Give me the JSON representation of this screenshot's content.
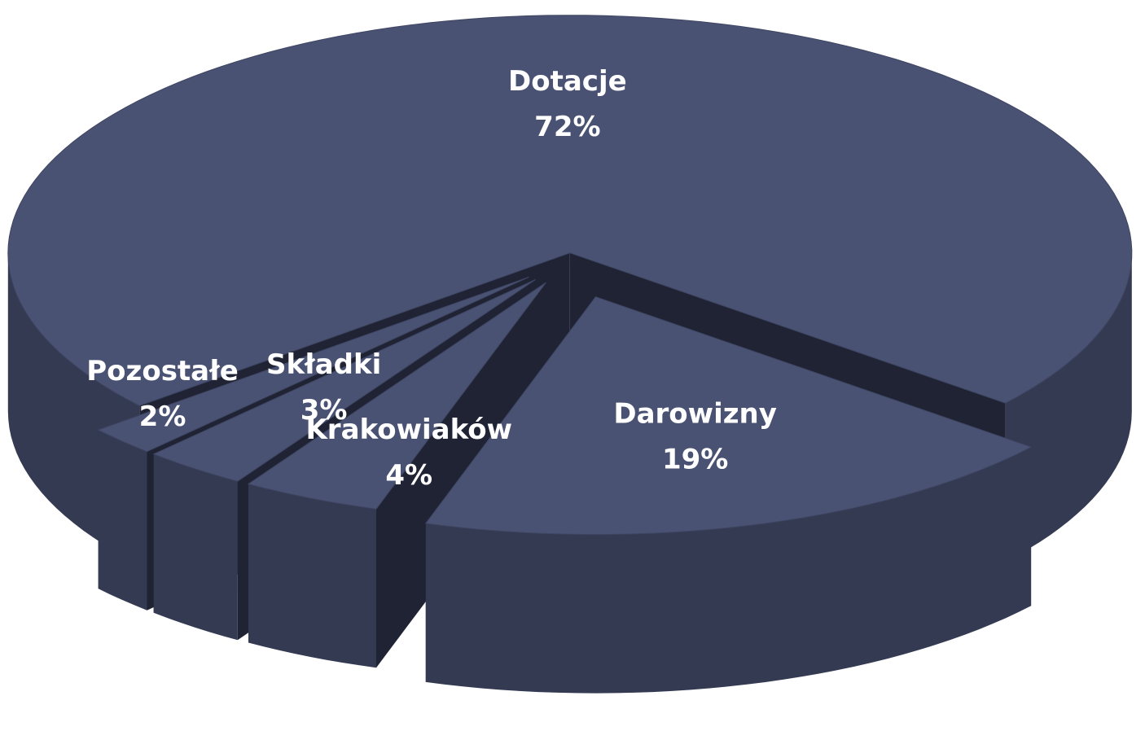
{
  "chart_data": {
    "type": "pie",
    "categories": [
      "Dotacje",
      "Darowizny",
      "Krakowiaków",
      "Składki",
      "Pozostałe"
    ],
    "values": [
      72,
      19,
      4,
      3,
      2
    ],
    "value_labels": [
      "72%",
      "19%",
      "4%",
      "3%",
      "2%"
    ],
    "color": "#4a5273"
  }
}
